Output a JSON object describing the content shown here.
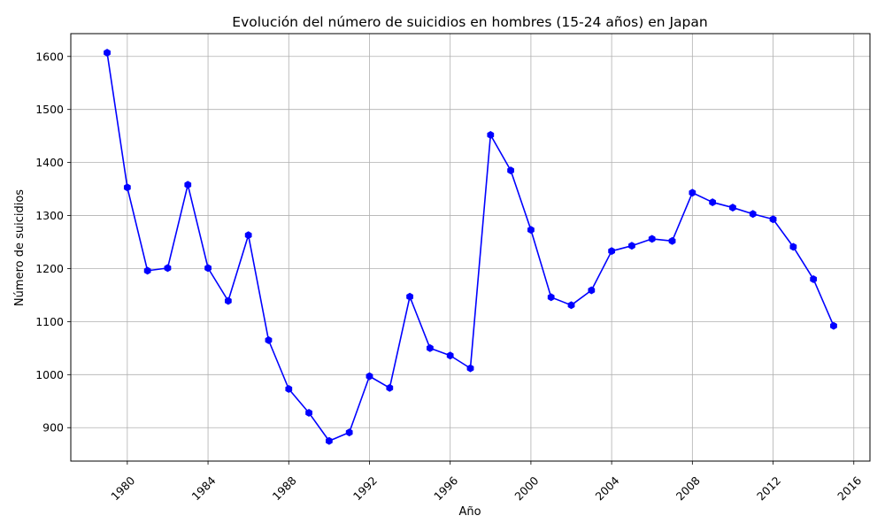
{
  "chart_data": {
    "type": "line",
    "title": "Evolución del número de suicidios en hombres (15-24 años) en Japan",
    "xlabel": "Año",
    "ylabel": "Número de suicidios",
    "x_ticks": [
      "1980",
      "1984",
      "1988",
      "1992",
      "1996",
      "2000",
      "2004",
      "2008",
      "2012",
      "2016"
    ],
    "y_ticks": [
      "900",
      "1000",
      "1100",
      "1200",
      "1300",
      "1400",
      "1500",
      "1600"
    ],
    "xlim": [
      1977.2,
      2016.8
    ],
    "ylim": [
      837,
      1643
    ],
    "grid": true,
    "line_color": "#0000ff",
    "marker": "hexagon",
    "series": [
      {
        "x": [
          1979,
          1980,
          1981,
          1982,
          1983,
          1984,
          1985,
          1986,
          1987,
          1988,
          1989,
          1990,
          1991,
          1992,
          1993,
          1994,
          1995,
          1996,
          1997,
          1998,
          1999,
          2000,
          2001,
          2002,
          2003,
          2004,
          2005,
          2006,
          2007,
          2008,
          2009,
          2010,
          2011,
          2012,
          2013,
          2014,
          2015
        ],
        "values": [
          1607,
          1353,
          1196,
          1201,
          1358,
          1201,
          1139,
          1263,
          1065,
          973,
          928,
          875,
          891,
          997,
          975,
          1147,
          1050,
          1036,
          1012,
          1452,
          1385,
          1273,
          1146,
          1131,
          1159,
          1233,
          1243,
          1256,
          1252,
          1343,
          1325,
          1315,
          1303,
          1293,
          1241,
          1180,
          1092
        ]
      }
    ]
  }
}
